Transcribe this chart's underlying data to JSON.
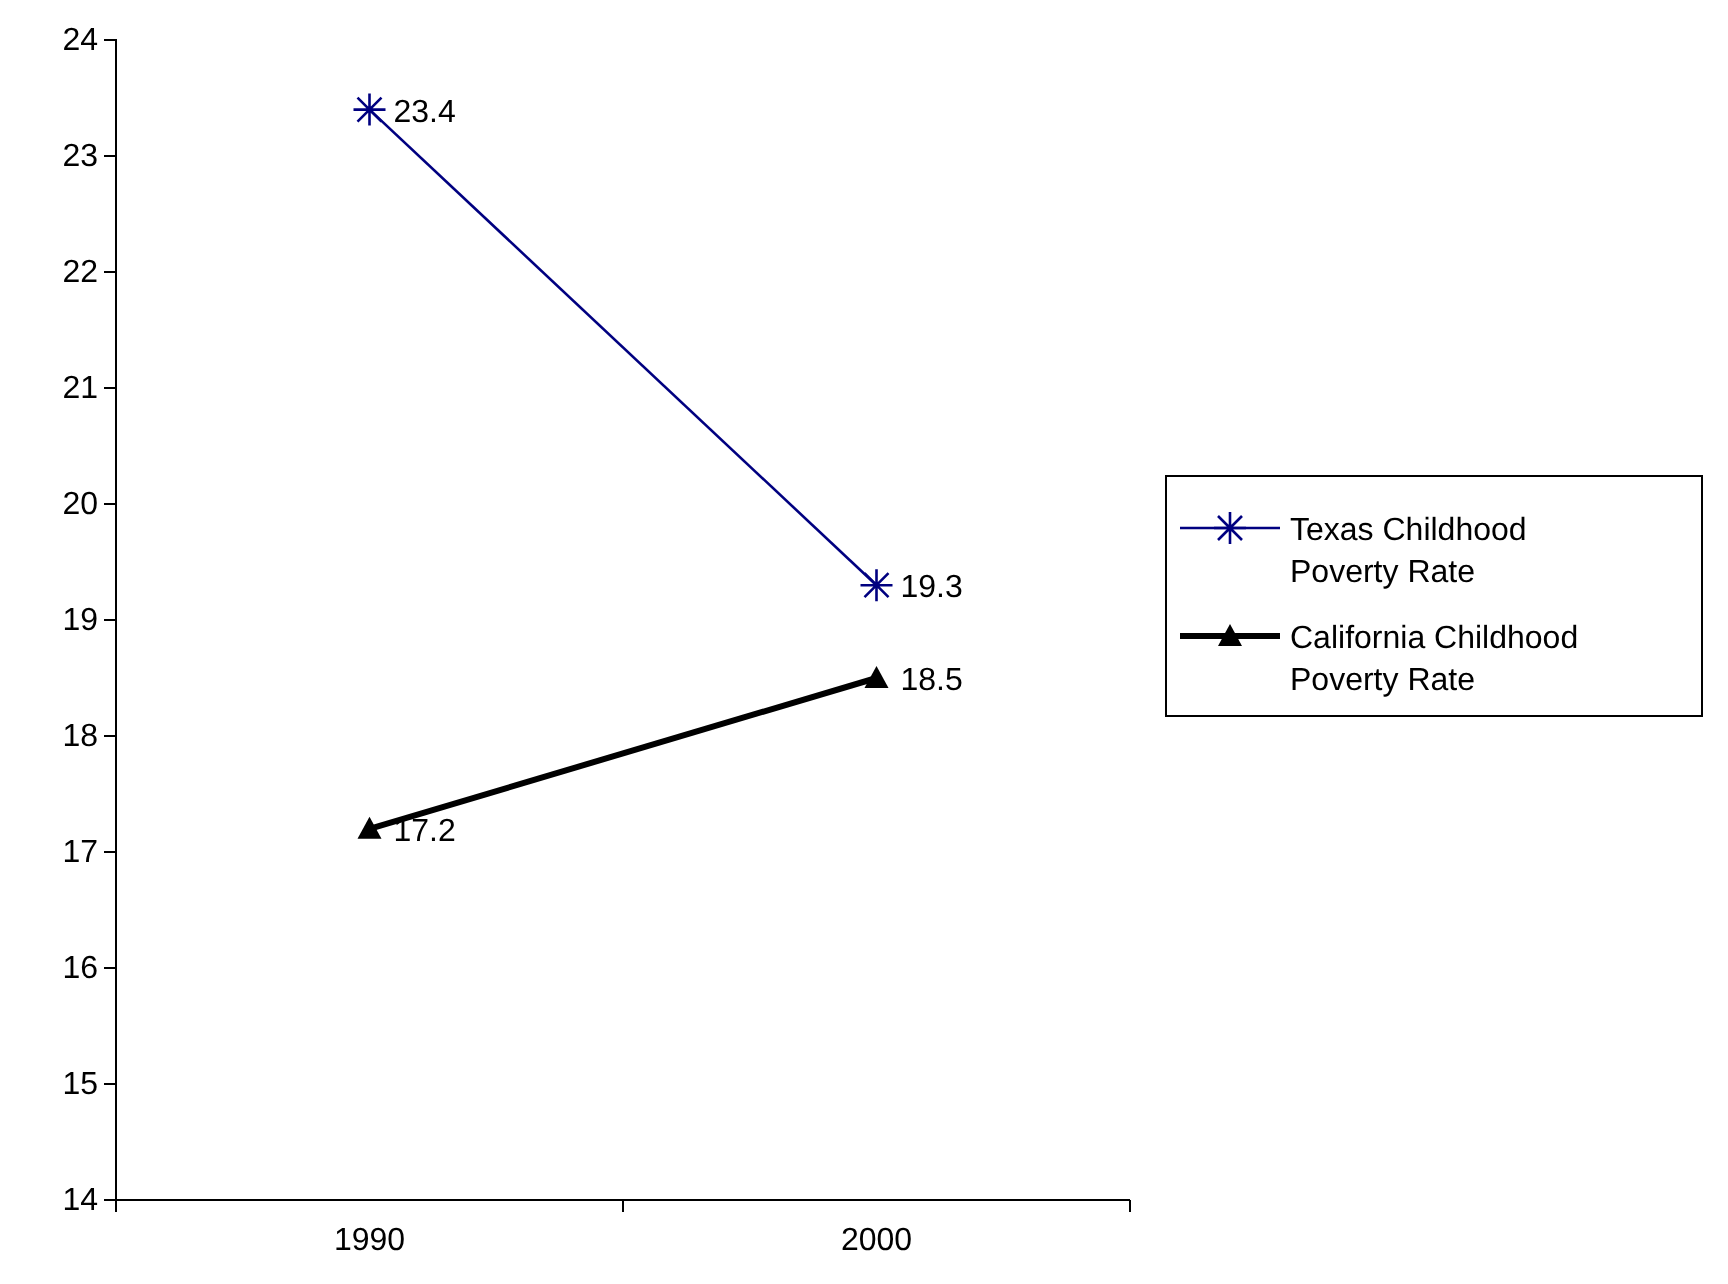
{
  "chart_data": {
    "type": "line",
    "categories": [
      "1990",
      "2000"
    ],
    "series": [
      {
        "name": "Texas Childhood Poverty Rate",
        "color": "#000080",
        "values": [
          23.4,
          19.3
        ],
        "marker": "cross"
      },
      {
        "name": "California Childhood Poverty Rate",
        "color": "#000000",
        "values": [
          17.2,
          18.5
        ],
        "marker": "triangle"
      }
    ],
    "ylim": [
      14,
      24
    ],
    "yticks": [
      14,
      15,
      16,
      17,
      18,
      19,
      20,
      21,
      22,
      23,
      24
    ],
    "data_labels": true,
    "legend": "right",
    "grid": false
  }
}
